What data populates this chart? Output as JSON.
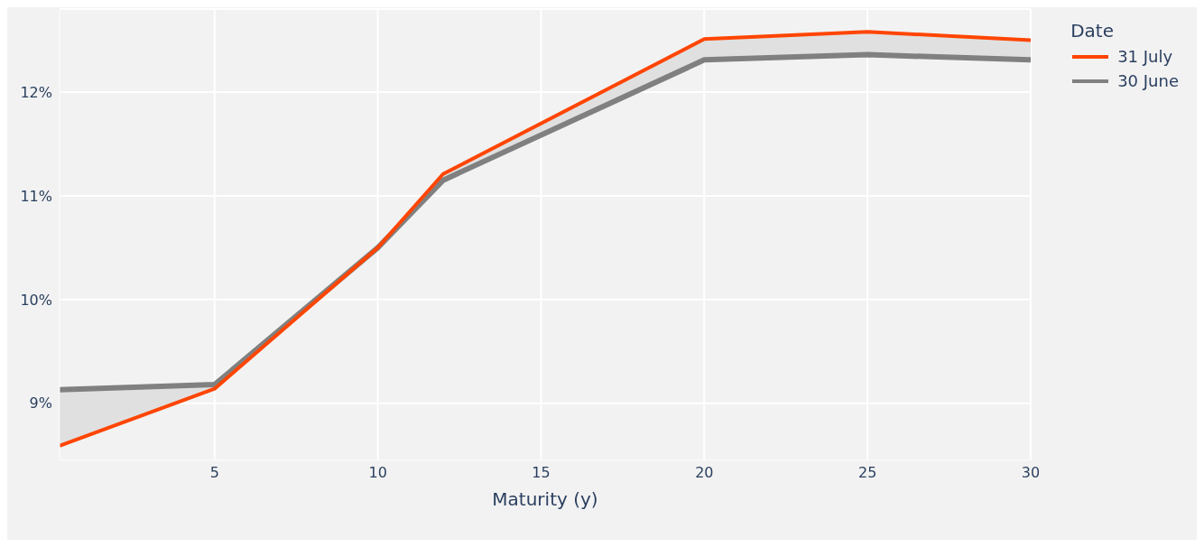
{
  "chart_data": {
    "type": "line",
    "xlabel": "Maturity (y)",
    "legend_title": "Date",
    "x": [
      0.25,
      5,
      10,
      12,
      20,
      25,
      30
    ],
    "series": [
      {
        "name": "31 July",
        "color": "#ff4500",
        "values": [
          8.59,
          9.14,
          10.5,
          11.21,
          12.51,
          12.58,
          12.5
        ]
      },
      {
        "name": "30 June",
        "color": "#808080",
        "values": [
          9.13,
          9.18,
          10.5,
          11.15,
          12.31,
          12.36,
          12.31
        ],
        "lower": [
          8.59,
          9.14,
          10.5,
          11.15,
          12.31,
          12.36,
          12.31
        ],
        "upper": [
          9.13,
          9.18,
          10.5,
          11.21,
          12.51,
          12.58,
          12.5
        ]
      }
    ],
    "xlim": [
      0.25,
      30
    ],
    "xticks": [
      5,
      10,
      15,
      20,
      25,
      30
    ],
    "ylim": [
      8.45,
      12.8
    ],
    "yticks": [
      {
        "value": 9,
        "label": "9%"
      },
      {
        "value": 10,
        "label": "10%"
      },
      {
        "value": 11,
        "label": "11%"
      },
      {
        "value": 12,
        "label": "12%"
      }
    ],
    "grid": true,
    "legend": "top right",
    "line_style": "solid"
  }
}
